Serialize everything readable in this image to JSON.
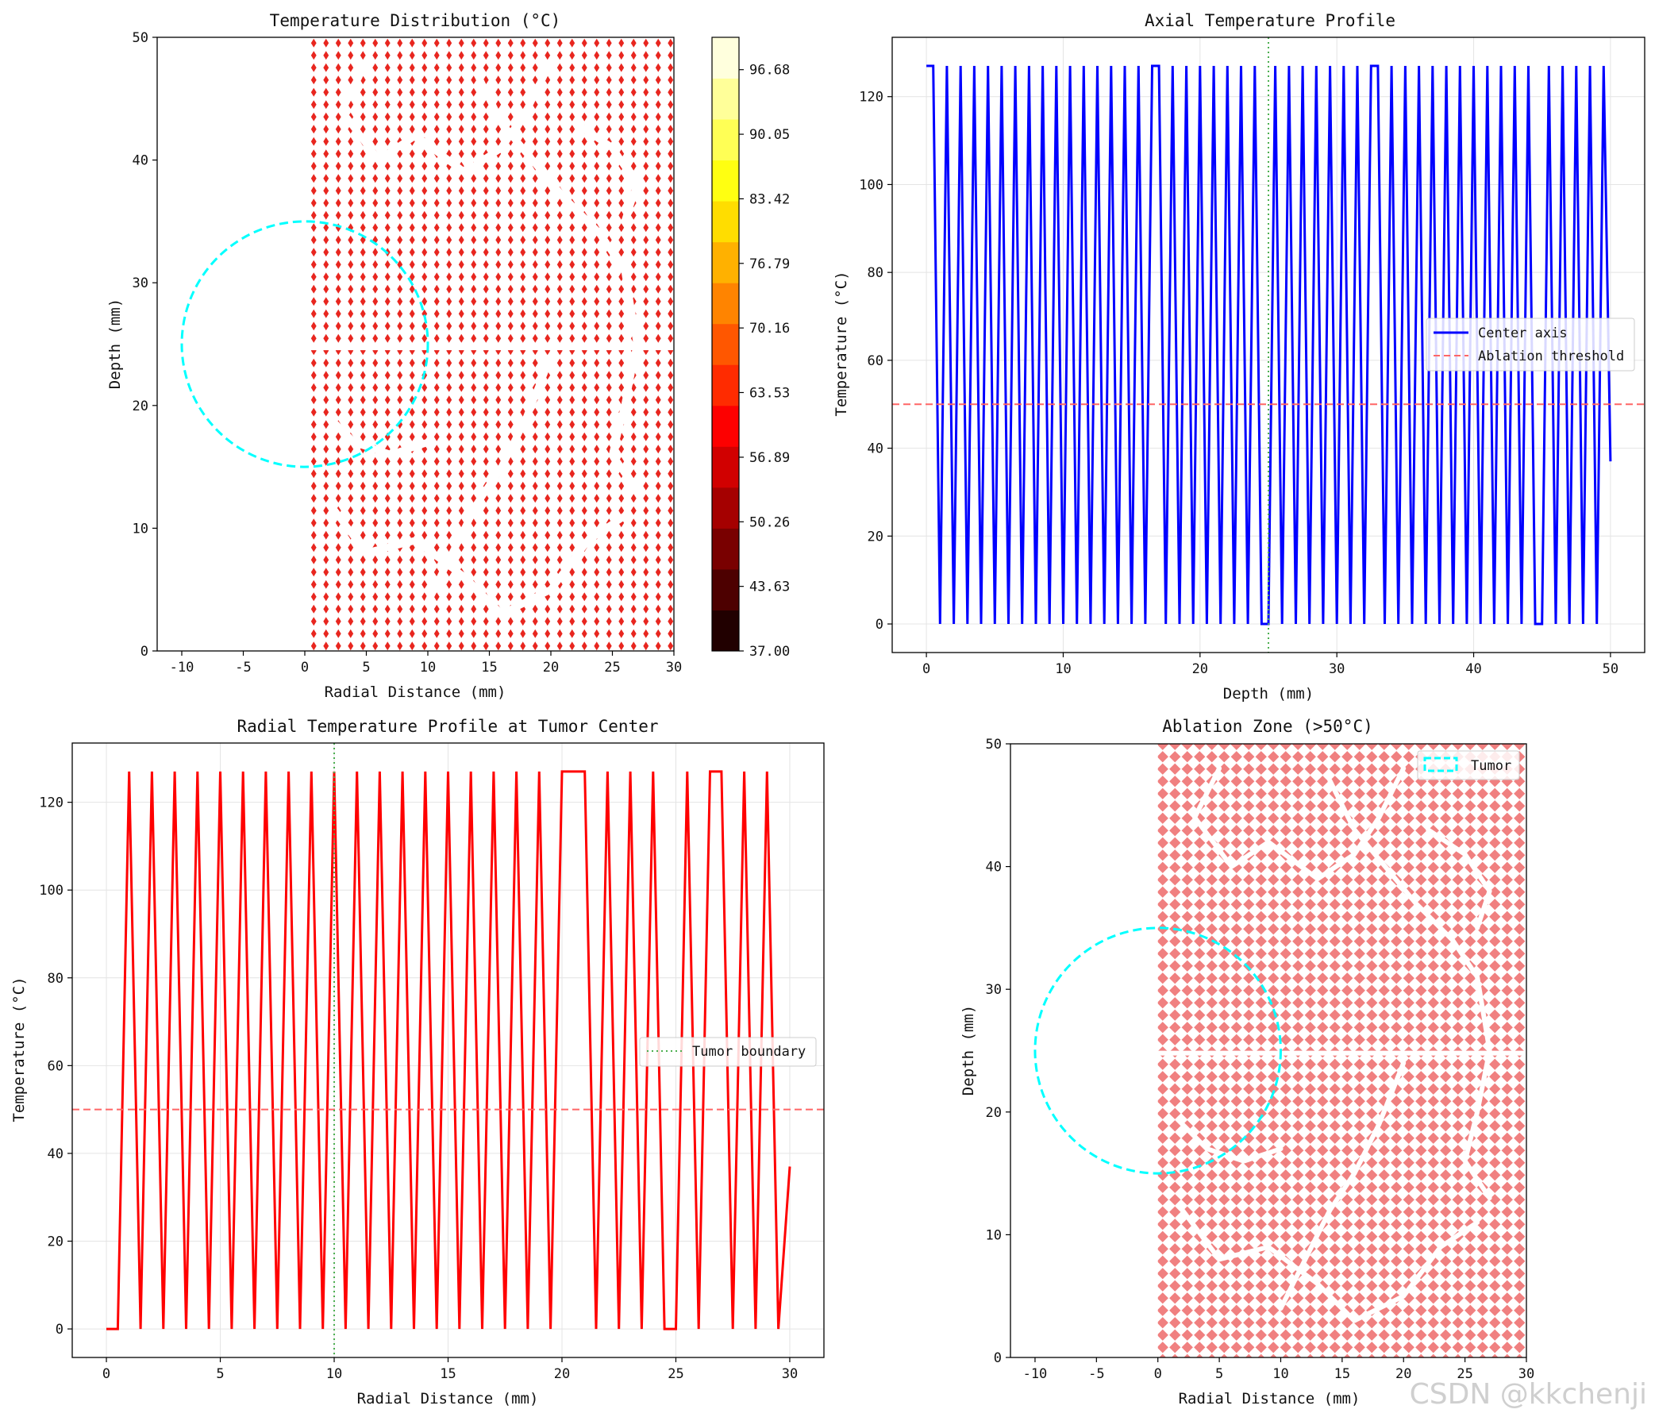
{
  "watermark": "CSDN @kkchenji",
  "chart_data": [
    {
      "id": "heatmap",
      "type": "heatmap",
      "title": "Temperature Distribution (°C)",
      "xlabel": "Radial Distance (mm)",
      "ylabel": "Depth (mm)",
      "xlim": [
        -12,
        30
      ],
      "ylim": [
        0,
        50
      ],
      "xticks": [
        -10,
        -5,
        0,
        5,
        10,
        15,
        20,
        25,
        30
      ],
      "yticks": [
        0,
        10,
        20,
        30,
        40,
        50
      ],
      "field_x_range": [
        0,
        30
      ],
      "field_y_range": [
        0,
        50
      ],
      "pattern": "alternating ~0 °C / ~127 °C checker on 0.5 mm grid, rendered as red diamonds with white gaps",
      "tumor_circle": {
        "center": [
          0,
          25
        ],
        "radius": 10
      },
      "colorbar": {
        "colormap": "hot",
        "min": 37.0,
        "max": 100,
        "tick_labels": [
          "37.00",
          "43.63",
          "50.26",
          "56.89",
          "63.53",
          "70.16",
          "76.79",
          "83.42",
          "90.05",
          "96.68"
        ],
        "tick_values": [
          37.0,
          43.63,
          50.26,
          56.89,
          63.53,
          70.16,
          76.79,
          83.42,
          90.05,
          96.68
        ]
      }
    },
    {
      "id": "axial",
      "type": "line",
      "title": "Axial Temperature Profile",
      "xlabel": "Depth (mm)",
      "ylabel": "Temperature (°C)",
      "xlim": [
        -2.5,
        52.5
      ],
      "ylim": [
        -6.5,
        133.5
      ],
      "xticks": [
        0,
        10,
        20,
        30,
        40,
        50
      ],
      "yticks": [
        0,
        20,
        40,
        60,
        80,
        100,
        120
      ],
      "series": [
        {
          "name": "Center axis",
          "color": "#0000ff",
          "style": "solid",
          "pattern": {
            "x_start": 0,
            "x_end": 50,
            "step": 0.5,
            "high": 127,
            "low": 0,
            "start_value": 127,
            "end_value": 37,
            "plateaus_high": [
              [
                0,
                0.5
              ],
              [
                16.5,
                17
              ],
              [
                32.5,
                33
              ]
            ],
            "plateaus_low": [
              [
                24.5,
                25
              ],
              [
                44.5,
                45
              ]
            ]
          }
        },
        {
          "name": "Ablation threshold",
          "color": "#ff6666",
          "style": "dashed",
          "y": 50
        }
      ],
      "vline": {
        "x": 25,
        "color": "#4caf50",
        "style": "dotted"
      },
      "legend": {
        "location": "center-right"
      }
    },
    {
      "id": "radial",
      "type": "line",
      "title": "Radial Temperature Profile at Tumor Center",
      "xlabel": "Radial Distance (mm)",
      "ylabel": "Temperature (°C)",
      "xlim": [
        -1.5,
        31.5
      ],
      "ylim": [
        -6.5,
        133.5
      ],
      "xticks": [
        0,
        5,
        10,
        15,
        20,
        25,
        30
      ],
      "yticks": [
        0,
        20,
        40,
        60,
        80,
        100,
        120
      ],
      "series": [
        {
          "name": "",
          "color": "#ff0000",
          "style": "solid",
          "pattern": {
            "x_start": 0,
            "x_end": 30,
            "step": 0.5,
            "high": 127,
            "low": 0,
            "start_value": 0,
            "end_value": 37,
            "plateaus_high": [
              [
                20.5,
                21
              ],
              [
                26.5,
                27
              ]
            ],
            "plateaus_low": [
              [
                0,
                0.5
              ],
              [
                24.5,
                25
              ]
            ]
          }
        },
        {
          "name": "",
          "color": "#ff6666",
          "style": "dashed",
          "y": 50
        }
      ],
      "vline": {
        "name": "Tumor boundary",
        "x": 10,
        "color": "#4caf50",
        "style": "dotted"
      },
      "legend": {
        "location": "center-right",
        "entries": [
          "Tumor boundary"
        ]
      }
    },
    {
      "id": "ablation",
      "type": "heatmap",
      "title": "Ablation Zone (>50°C)",
      "xlabel": "Radial Distance (mm)",
      "ylabel": "Depth (mm)",
      "xlim": [
        -12,
        30
      ],
      "ylim": [
        0,
        50
      ],
      "xticks": [
        -10,
        -5,
        0,
        5,
        10,
        15,
        20,
        25,
        30
      ],
      "yticks": [
        0,
        10,
        20,
        30,
        40,
        50
      ],
      "field_x_range": [
        0,
        30
      ],
      "field_y_range": [
        0,
        50
      ],
      "fill_color": "#f08080",
      "tumor_circle": {
        "name": "Tumor",
        "center": [
          0,
          25
        ],
        "radius": 10
      },
      "legend": {
        "location": "top-right",
        "entries": [
          "Tumor"
        ]
      }
    }
  ]
}
